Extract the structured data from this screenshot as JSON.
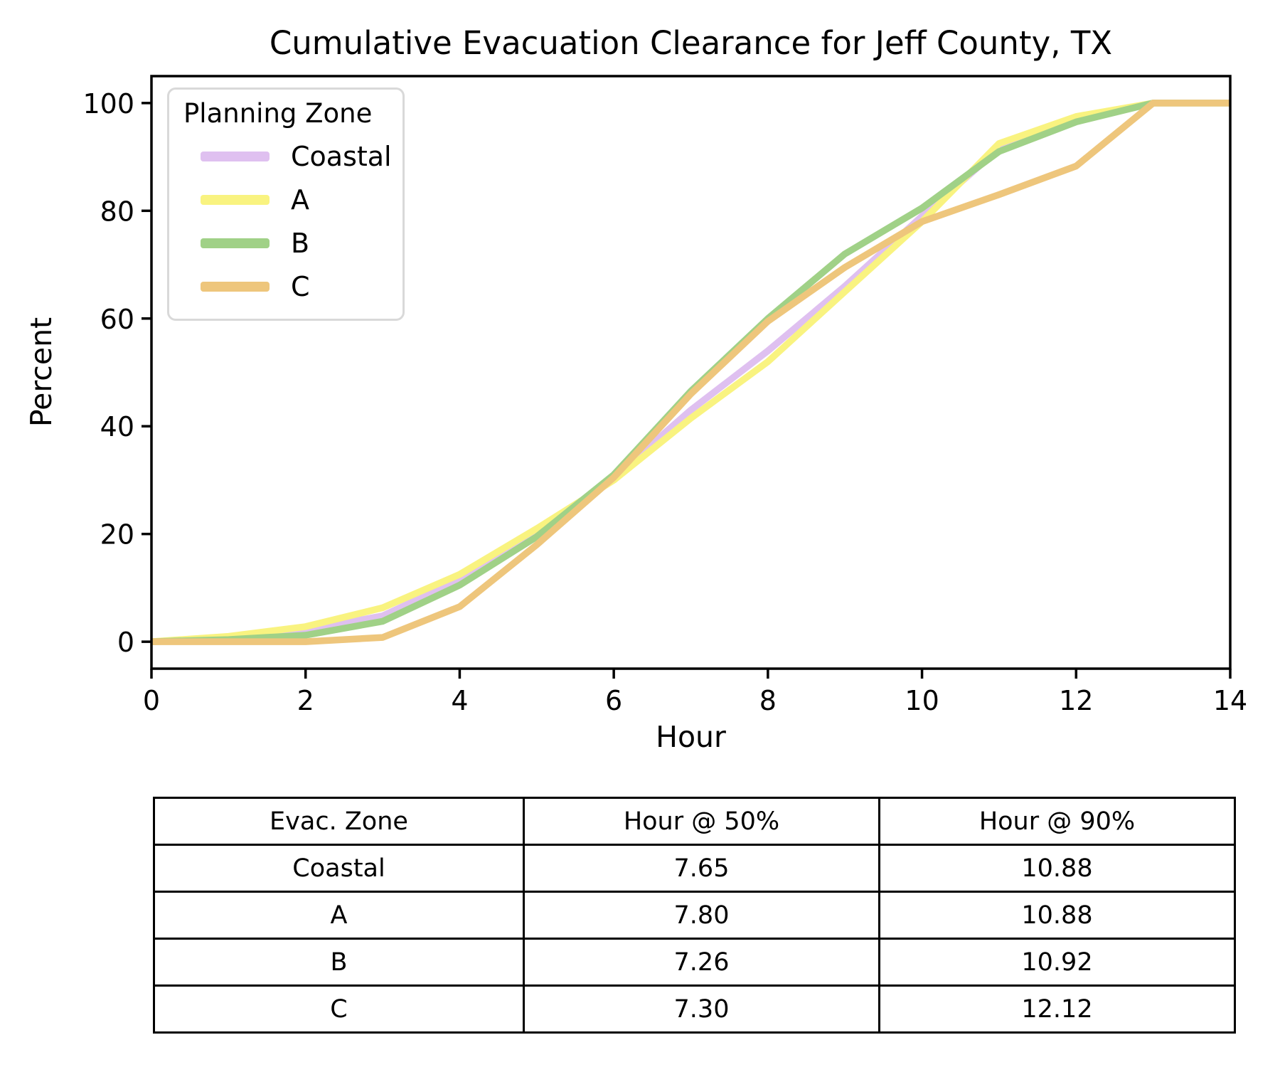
{
  "title": "Cumulative Evacuation Clearance for Jeff County, TX",
  "chart_data": {
    "type": "line",
    "title": "Cumulative Evacuation Clearance for Jeff County, TX",
    "xlabel": "Hour",
    "ylabel": "Percent",
    "xlim": [
      0,
      14
    ],
    "ylim": [
      -5,
      105
    ],
    "x_ticks": [
      0,
      2,
      4,
      6,
      8,
      10,
      12,
      14
    ],
    "y_ticks": [
      0,
      20,
      40,
      60,
      80,
      100
    ],
    "grid": false,
    "legend": {
      "title": "Planning Zone",
      "position": "upper left"
    },
    "x": [
      0,
      1,
      2,
      3,
      4,
      5,
      6,
      7,
      8,
      9,
      10,
      11,
      12,
      13,
      14
    ],
    "series": [
      {
        "name": "Coastal",
        "color": "#dfc0f0",
        "values": [
          0,
          0.8,
          2.2,
          4.8,
          11.5,
          20,
          30.5,
          43,
          54,
          66,
          79,
          91.5,
          97,
          100,
          100
        ]
      },
      {
        "name": "A",
        "color": "#f9f380",
        "values": [
          0,
          1,
          2.8,
          6.3,
          12.5,
          21,
          30,
          41.5,
          52,
          65,
          78,
          92.5,
          97.5,
          100,
          100
        ]
      },
      {
        "name": "B",
        "color": "#a0d187",
        "values": [
          0,
          0.4,
          1.2,
          3.8,
          10.5,
          19.5,
          31,
          46.5,
          60,
          72,
          80.5,
          91,
          96.5,
          100,
          100
        ]
      },
      {
        "name": "C",
        "color": "#eec67c",
        "values": [
          0,
          0,
          0,
          0.8,
          6.5,
          18,
          30.5,
          46,
          59.5,
          69.5,
          78,
          83,
          88.3,
          100,
          100
        ]
      }
    ]
  },
  "table": {
    "headers": [
      "Evac. Zone",
      "Hour @ 50%",
      "Hour @ 90%"
    ],
    "rows": [
      [
        "Coastal",
        "7.65",
        "10.88"
      ],
      [
        "A",
        "7.80",
        "10.88"
      ],
      [
        "B",
        "7.26",
        "10.92"
      ],
      [
        "C",
        "7.30",
        "12.12"
      ]
    ]
  },
  "colors": {
    "axis": "#000000",
    "legend_border": "#d9d9d9"
  }
}
